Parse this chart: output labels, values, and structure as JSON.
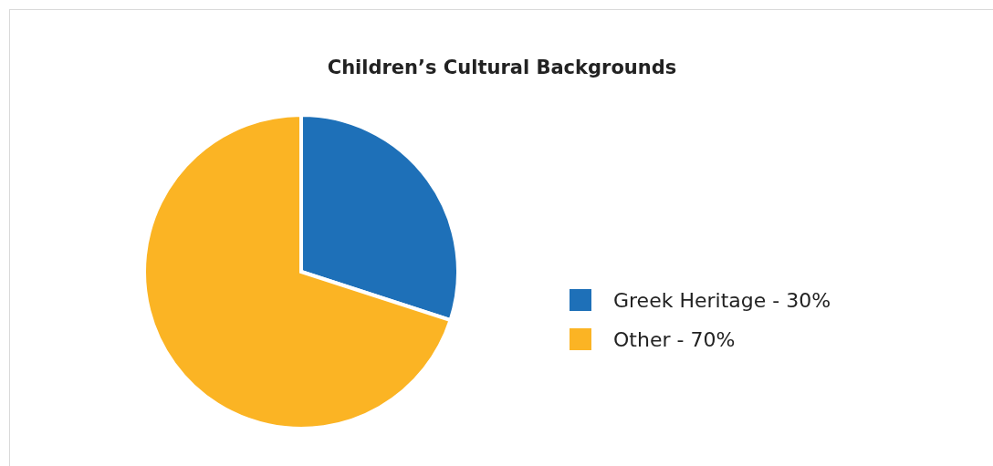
{
  "chart_data": {
    "type": "pie",
    "title": "Children’s Cultural Backgrounds",
    "categories": [
      "Greek Heritage - 30%",
      "Other - 70%"
    ],
    "values": [
      30,
      70
    ],
    "colors": [
      "#1e70b8",
      "#fbb424"
    ],
    "legend": "right"
  }
}
